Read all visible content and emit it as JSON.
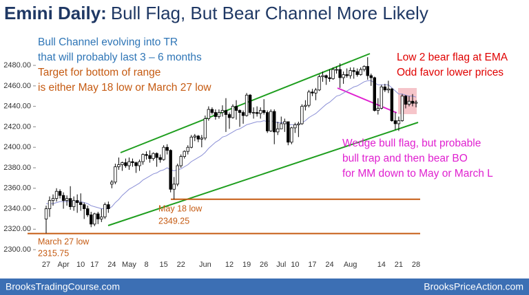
{
  "chart_data": {
    "type": "candlestick",
    "title": "Emini Daily:",
    "subtitle": "Bull Flag, But Bear Channel More Likely",
    "footer_left": "BrooksTradingCourse.com",
    "footer_right": "BrooksPriceAction.com",
    "categories": [
      "27",
      null,
      null,
      null,
      null,
      "Apr",
      null,
      null,
      null,
      null,
      "10",
      null,
      null,
      null,
      "17",
      null,
      null,
      null,
      null,
      "24",
      null,
      null,
      null,
      null,
      "May",
      null,
      null,
      null,
      null,
      "8",
      null,
      null,
      null,
      null,
      "15",
      null,
      null,
      null,
      null,
      "22",
      null,
      null,
      null,
      null,
      null,
      null,
      "Jun",
      null,
      null,
      null,
      null,
      null,
      null,
      "12",
      null,
      null,
      null,
      null,
      "19",
      null,
      null,
      null,
      null,
      "26",
      null,
      null,
      null,
      null,
      "Jul",
      null,
      null,
      null,
      "10",
      null,
      null,
      null,
      null,
      "17",
      null,
      null,
      null,
      null,
      "24",
      null,
      null,
      null,
      null,
      null,
      "Aug",
      null,
      null,
      null,
      null,
      null,
      null,
      null,
      null,
      "14",
      null,
      null,
      null,
      null,
      "21",
      null,
      null,
      null,
      null,
      "28"
    ],
    "ohlc": [
      [
        2330,
        2343,
        2316,
        2340
      ],
      [
        2340,
        2352,
        2332,
        2348
      ],
      [
        2348,
        2354,
        2343,
        2350
      ],
      [
        2350,
        2360,
        2347,
        2357
      ],
      [
        2357,
        2359,
        2350,
        2353
      ],
      [
        2353,
        2356,
        2340,
        2348
      ],
      [
        2348,
        2353,
        2343,
        2350
      ],
      [
        2350,
        2362,
        2339,
        2342
      ],
      [
        2342,
        2352,
        2338,
        2348
      ],
      [
        2348,
        2354,
        2336,
        2346
      ],
      [
        2346,
        2355,
        2338,
        2344
      ],
      [
        2344,
        2346,
        2330,
        2340
      ],
      [
        2340,
        2343,
        2332,
        2334
      ],
      [
        2334,
        2337,
        2322,
        2325
      ],
      [
        2325,
        2336,
        2323,
        2335
      ],
      [
        2335,
        2337,
        2325,
        2330
      ],
      [
        2330,
        2340,
        2327,
        2332
      ],
      [
        2332,
        2346,
        2330,
        2344
      ],
      [
        2344,
        2347,
        2336,
        2340
      ],
      [
        2364,
        2368,
        2360,
        2366
      ],
      [
        2366,
        2384,
        2364,
        2381
      ],
      [
        2381,
        2390,
        2378,
        2383
      ],
      [
        2383,
        2386,
        2377,
        2385
      ],
      [
        2385,
        2389,
        2380,
        2382
      ],
      [
        2382,
        2390,
        2378,
        2386
      ],
      [
        2386,
        2389,
        2381,
        2385
      ],
      [
        2385,
        2386,
        2375,
        2382
      ],
      [
        2382,
        2388,
        2377,
        2386
      ],
      [
        2386,
        2394,
        2383,
        2393
      ],
      [
        2393,
        2396,
        2388,
        2392
      ],
      [
        2392,
        2397,
        2385,
        2389
      ],
      [
        2389,
        2395,
        2387,
        2394
      ],
      [
        2394,
        2395,
        2381,
        2390
      ],
      [
        2390,
        2393,
        2385,
        2388
      ],
      [
        2388,
        2402,
        2387,
        2400
      ],
      [
        2400,
        2403,
        2393,
        2397
      ],
      [
        2397,
        2398,
        2356,
        2359
      ],
      [
        2359,
        2371,
        2349.25,
        2364
      ],
      [
        2364,
        2384,
        2362,
        2382
      ],
      [
        2382,
        2393,
        2380,
        2391
      ],
      [
        2391,
        2397,
        2389,
        2396
      ],
      [
        2396,
        2402,
        2393,
        2400
      ],
      [
        2400,
        2412,
        2399,
        2410
      ],
      [
        2410,
        2413,
        2406,
        2411
      ],
      [
        2411,
        2412,
        2405,
        2408
      ],
      [
        2408,
        2412,
        2400,
        2409
      ],
      [
        2409,
        2431,
        2407,
        2428
      ],
      [
        2428,
        2440,
        2426,
        2437
      ],
      [
        2437,
        2439,
        2432,
        2434
      ],
      [
        2434,
        2437,
        2427,
        2430
      ],
      [
        2430,
        2437,
        2428,
        2434
      ],
      [
        2434,
        2441,
        2430,
        2436
      ],
      [
        2436,
        2448,
        2415,
        2432
      ],
      [
        2432,
        2434,
        2418,
        2429
      ],
      [
        2429,
        2442,
        2428,
        2440
      ],
      [
        2440,
        2446,
        2427,
        2436
      ],
      [
        2436,
        2437,
        2420,
        2434
      ],
      [
        2434,
        2436,
        2423,
        2431
      ],
      [
        2431,
        2453,
        2430,
        2451
      ],
      [
        2451,
        2452,
        2432,
        2434
      ],
      [
        2434,
        2439,
        2428,
        2434
      ],
      [
        2434,
        2440,
        2430,
        2433
      ],
      [
        2433,
        2439,
        2428,
        2436
      ],
      [
        2436,
        2447,
        2432,
        2434
      ],
      [
        2434,
        2436,
        2414,
        2416
      ],
      [
        2416,
        2437,
        2415,
        2435
      ],
      [
        2435,
        2437,
        2403,
        2415
      ],
      [
        2415,
        2425,
        2412,
        2418
      ],
      [
        2418,
        2430,
        2418,
        2423
      ],
      [
        2423,
        2428,
        2415,
        2425
      ],
      [
        2425,
        2425,
        2402,
        2405
      ],
      [
        2405,
        2420,
        2403,
        2419
      ],
      [
        2419,
        2424,
        2414,
        2422
      ],
      [
        2422,
        2425,
        2410,
        2423
      ],
      [
        2423,
        2442,
        2422,
        2440
      ],
      [
        2440,
        2446,
        2436,
        2441
      ],
      [
        2441,
        2456,
        2439,
        2454
      ],
      [
        2454,
        2457,
        2450,
        2453
      ],
      [
        2453,
        2458,
        2446,
        2456
      ],
      [
        2456,
        2471,
        2455,
        2469
      ],
      [
        2469,
        2474,
        2464,
        2470
      ],
      [
        2470,
        2471,
        2461,
        2468
      ],
      [
        2468,
        2476,
        2464,
        2467
      ],
      [
        2467,
        2478,
        2466,
        2476
      ],
      [
        2476,
        2479,
        2472,
        2476
      ],
      [
        2476,
        2482,
        2458,
        2468
      ],
      [
        2468,
        2474,
        2462,
        2471
      ],
      [
        2471,
        2477,
        2468,
        2470
      ],
      [
        2470,
        2478,
        2467,
        2475
      ],
      [
        2475,
        2478,
        2467,
        2474
      ],
      [
        2474,
        2477,
        2469,
        2471
      ],
      [
        2471,
        2478,
        2470,
        2476
      ],
      [
        2476,
        2480,
        2474,
        2479
      ],
      [
        2479,
        2488,
        2466,
        2470
      ],
      [
        2470,
        2472,
        2460,
        2468
      ],
      [
        2468,
        2469,
        2435,
        2436
      ],
      [
        2436,
        2448,
        2432,
        2438
      ],
      [
        2438,
        2461,
        2437,
        2459
      ],
      [
        2459,
        2462,
        2454,
        2456
      ],
      [
        2456,
        2465,
        2453,
        2457
      ],
      [
        2457,
        2458,
        2425,
        2426
      ],
      [
        2426,
        2434,
        2417,
        2423
      ],
      [
        2423,
        2430,
        2416,
        2426
      ],
      [
        2426,
        2452,
        2425,
        2450
      ],
      [
        2450,
        2451,
        2438,
        2442
      ],
      [
        2442,
        2450,
        2440,
        2445
      ],
      [
        2445,
        2452,
        2440,
        2443
      ],
      [
        2443,
        2446,
        2439,
        2444
      ]
    ],
    "ema": [
      2345,
      2345,
      2345,
      2346,
      2347,
      2347,
      2347,
      2347,
      2347,
      2347,
      2347,
      2346,
      2345,
      2343,
      2342,
      2341,
      2340,
      2340,
      2340,
      2342,
      2346,
      2349,
      2353,
      2356,
      2359,
      2361,
      2363,
      2365,
      2368,
      2370,
      2372,
      2374,
      2375,
      2377,
      2378,
      2380,
      2378,
      2377,
      2378,
      2379,
      2381,
      2383,
      2386,
      2388,
      2390,
      2392,
      2395,
      2399,
      2402,
      2405,
      2407,
      2410,
      2411,
      2413,
      2415,
      2417,
      2418,
      2420,
      2422,
      2423,
      2424,
      2425,
      2425,
      2426,
      2425,
      2426,
      2425,
      2424,
      2424,
      2424,
      2422,
      2422,
      2422,
      2422,
      2424,
      2426,
      2429,
      2431,
      2433,
      2436,
      2439,
      2442,
      2444,
      2447,
      2450,
      2451,
      2453,
      2455,
      2457,
      2459,
      2460,
      2462,
      2464,
      2465,
      2465,
      2463,
      2461,
      2461,
      2461,
      2461,
      2458,
      2455,
      2452,
      2452,
      2451,
      2450,
      2450,
      2449
    ],
    "ema_color": "#8a8fd6",
    "up_color": "#ffffff",
    "down_color": "#000000",
    "levels": [
      {
        "value": 2349.25,
        "name": "May 18 low",
        "color": "#c55a11"
      },
      {
        "value": 2315.75,
        "name": "March 27 low",
        "color": "#c55a11"
      }
    ],
    "annotations": [
      "Bull Channel evolving into TR",
      "that will probably last 3 – 6  months",
      "Target for bottom of range",
      "is either May 18 low or March 27 low",
      "Low 2 bear flag at EMA",
      "Odd favor lower prices",
      "Wedge bull flag, but probable",
      "bull trap and then bear BO",
      "for MM down to May or March L"
    ],
    "ylim": [
      2292,
      2517
    ],
    "yticks": [
      {
        "value": 2300,
        "label": "2300.00"
      },
      {
        "value": 2320,
        "label": "2320.00"
      },
      {
        "value": 2340,
        "label": "2340.00"
      },
      {
        "value": 2360,
        "label": "2360.00"
      },
      {
        "value": 2380,
        "label": "2380.00"
      },
      {
        "value": 2400,
        "label": "2400.00"
      },
      {
        "value": 2420,
        "label": "2420.00"
      },
      {
        "value": 2440,
        "label": "2440.00"
      },
      {
        "value": 2460,
        "label": "2460.00"
      },
      {
        "value": 2480,
        "label": "2480.00"
      }
    ],
    "grid": false
  }
}
